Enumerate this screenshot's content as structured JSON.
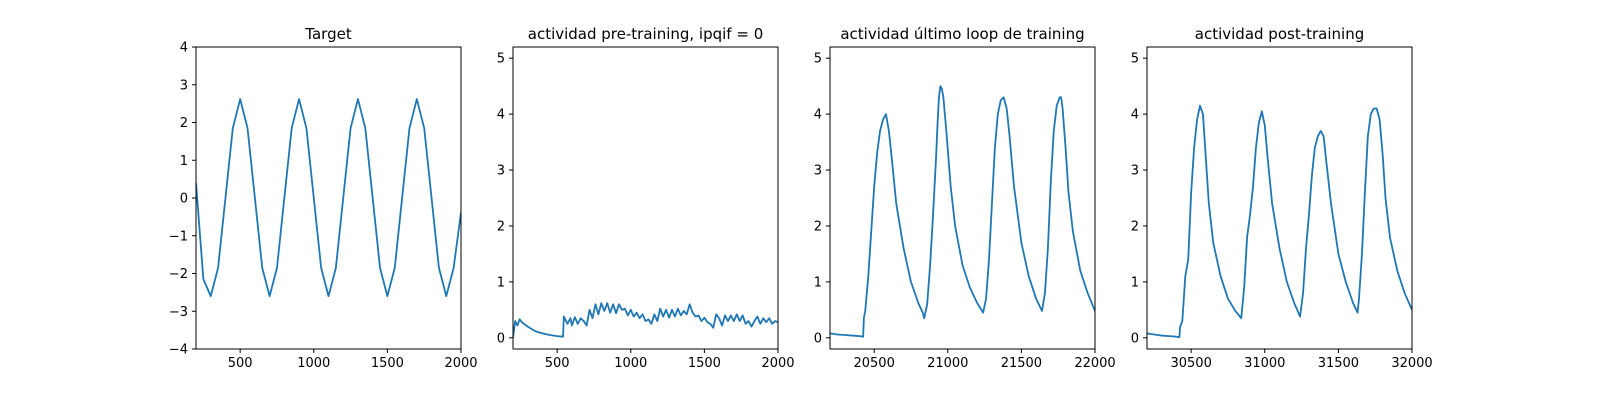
{
  "chart_data": [
    {
      "type": "line",
      "title": "Target",
      "xlabel": "",
      "ylabel": "",
      "xlim": [
        200,
        2000
      ],
      "ylim": [
        -4,
        4
      ],
      "xticks": [
        500,
        1000,
        1500,
        2000
      ],
      "xtick_labels": [
        "500",
        "1000",
        "1500",
        "2000"
      ],
      "yticks": [
        -4,
        -3,
        -2,
        -1,
        0,
        1,
        2,
        3,
        4
      ],
      "ytick_labels": [
        "−4",
        "−3",
        "−2",
        "−1",
        "0",
        "1",
        "2",
        "3",
        "4"
      ],
      "grid": false,
      "color": "#1f77b4",
      "series": [
        {
          "x": [
            200,
            250,
            300,
            350,
            400,
            450,
            500,
            550,
            600,
            650,
            700,
            750,
            800,
            850,
            900,
            950,
            1000,
            1050,
            1100,
            1150,
            1200,
            1250,
            1300,
            1350,
            1400,
            1450,
            1500,
            1550,
            1600,
            1650,
            1700,
            1750,
            1800,
            1850,
            1900,
            1950,
            2000
          ],
          "y": [
            0.4,
            -2.15,
            -2.6,
            -1.85,
            0.0,
            1.85,
            2.62,
            1.85,
            0.0,
            -1.85,
            -2.6,
            -1.85,
            0.0,
            1.85,
            2.62,
            1.85,
            0.0,
            -1.85,
            -2.6,
            -1.85,
            0.0,
            1.85,
            2.62,
            1.85,
            0.0,
            -1.85,
            -2.6,
            -1.85,
            0.0,
            1.85,
            2.62,
            1.85,
            0.0,
            -1.85,
            -2.6,
            -1.85,
            -0.38
          ]
        }
      ]
    },
    {
      "type": "line",
      "title": "actividad pre-training, ipqif = 0",
      "xlabel": "",
      "ylabel": "",
      "xlim": [
        200,
        2000
      ],
      "ylim": [
        -0.2,
        5.2
      ],
      "xticks": [
        500,
        1000,
        1500,
        2000
      ],
      "xtick_labels": [
        "500",
        "1000",
        "1500",
        "2000"
      ],
      "yticks": [
        0,
        1,
        2,
        3,
        4,
        5
      ],
      "ytick_labels": [
        "0",
        "1",
        "2",
        "3",
        "4",
        "5"
      ],
      "grid": false,
      "color": "#1f77b4",
      "series": [
        {
          "x": [
            200,
            215,
            230,
            245,
            260,
            300,
            350,
            400,
            450,
            500,
            540,
            545,
            570,
            590,
            600,
            620,
            640,
            660,
            680,
            700,
            720,
            740,
            760,
            780,
            800,
            820,
            840,
            860,
            880,
            900,
            920,
            940,
            960,
            980,
            1000,
            1020,
            1040,
            1060,
            1080,
            1100,
            1120,
            1140,
            1160,
            1180,
            1200,
            1220,
            1240,
            1260,
            1280,
            1300,
            1320,
            1340,
            1360,
            1380,
            1400,
            1420,
            1440,
            1460,
            1480,
            1500,
            1520,
            1540,
            1560,
            1580,
            1600,
            1620,
            1640,
            1660,
            1680,
            1700,
            1720,
            1740,
            1760,
            1780,
            1800,
            1820,
            1840,
            1860,
            1880,
            1900,
            1920,
            1940,
            1960,
            1980,
            2000
          ],
          "y": [
            0.0,
            0.3,
            0.22,
            0.33,
            0.28,
            0.2,
            0.12,
            0.08,
            0.05,
            0.03,
            0.02,
            0.38,
            0.25,
            0.35,
            0.22,
            0.37,
            0.25,
            0.35,
            0.3,
            0.22,
            0.5,
            0.35,
            0.6,
            0.42,
            0.62,
            0.48,
            0.62,
            0.45,
            0.6,
            0.44,
            0.6,
            0.5,
            0.52,
            0.4,
            0.5,
            0.38,
            0.45,
            0.35,
            0.42,
            0.3,
            0.33,
            0.25,
            0.42,
            0.3,
            0.52,
            0.38,
            0.5,
            0.36,
            0.5,
            0.38,
            0.52,
            0.4,
            0.48,
            0.42,
            0.6,
            0.45,
            0.38,
            0.4,
            0.3,
            0.36,
            0.28,
            0.25,
            0.18,
            0.42,
            0.35,
            0.22,
            0.4,
            0.3,
            0.4,
            0.3,
            0.42,
            0.3,
            0.4,
            0.25,
            0.3,
            0.2,
            0.3,
            0.38,
            0.25,
            0.35,
            0.28,
            0.35,
            0.25,
            0.3,
            0.28
          ]
        }
      ]
    },
    {
      "type": "line",
      "title": "actividad último loop de training",
      "xlabel": "",
      "ylabel": "",
      "xlim": [
        20200,
        22000
      ],
      "ylim": [
        -0.2,
        5.2
      ],
      "xticks": [
        20500,
        21000,
        21500,
        22000
      ],
      "xtick_labels": [
        "20500",
        "21000",
        "21500",
        "22000"
      ],
      "yticks": [
        0,
        1,
        2,
        3,
        4,
        5
      ],
      "ytick_labels": [
        "0",
        "1",
        "2",
        "3",
        "4",
        "5"
      ],
      "grid": false,
      "color": "#1f77b4",
      "series": [
        {
          "x": [
            20200,
            20250,
            20300,
            20350,
            20400,
            20425,
            20430,
            20440,
            20460,
            20480,
            20500,
            20520,
            20540,
            20560,
            20580,
            20600,
            20620,
            20650,
            20700,
            20750,
            20800,
            20830,
            20840,
            20860,
            20880,
            20900,
            20920,
            20930,
            20940,
            20950,
            20960,
            20970,
            20990,
            21020,
            21050,
            21100,
            21150,
            21200,
            21240,
            21260,
            21280,
            21300,
            21320,
            21340,
            21360,
            21380,
            21400,
            21420,
            21450,
            21500,
            21550,
            21600,
            21640,
            21660,
            21680,
            21700,
            21720,
            21740,
            21760,
            21770,
            21780,
            21800,
            21820,
            21850,
            21900,
            21950,
            22000
          ],
          "y": [
            0.08,
            0.06,
            0.05,
            0.04,
            0.03,
            0.02,
            0.35,
            0.5,
            1.1,
            1.9,
            2.7,
            3.3,
            3.7,
            3.9,
            4.0,
            3.7,
            3.2,
            2.4,
            1.6,
            1.0,
            0.62,
            0.45,
            0.35,
            0.6,
            1.3,
            2.2,
            3.2,
            3.8,
            4.3,
            4.5,
            4.45,
            4.3,
            3.7,
            2.7,
            2.0,
            1.3,
            0.9,
            0.62,
            0.45,
            0.7,
            1.4,
            2.4,
            3.4,
            4.0,
            4.25,
            4.3,
            4.1,
            3.6,
            2.7,
            1.7,
            1.1,
            0.7,
            0.48,
            0.8,
            1.6,
            2.8,
            3.7,
            4.15,
            4.3,
            4.3,
            4.1,
            3.4,
            2.6,
            1.9,
            1.2,
            0.8,
            0.48
          ]
        }
      ]
    },
    {
      "type": "line",
      "title": "actividad post-training",
      "xlabel": "",
      "ylabel": "",
      "xlim": [
        30200,
        32000
      ],
      "ylim": [
        -0.2,
        5.2
      ],
      "xticks": [
        30500,
        31000,
        31500,
        32000
      ],
      "xtick_labels": [
        "30500",
        "31000",
        "31500",
        "32000"
      ],
      "yticks": [
        0,
        1,
        2,
        3,
        4,
        5
      ],
      "ytick_labels": [
        "0",
        "1",
        "2",
        "3",
        "4",
        "5"
      ],
      "grid": false,
      "color": "#1f77b4",
      "series": [
        {
          "x": [
            30200,
            30250,
            30300,
            30350,
            30400,
            30420,
            30425,
            30440,
            30460,
            30480,
            30500,
            30520,
            30540,
            30560,
            30580,
            30600,
            30620,
            30650,
            30700,
            30750,
            30800,
            30840,
            30860,
            30880,
            30900,
            30920,
            30940,
            30960,
            30980,
            31000,
            31020,
            31050,
            31100,
            31150,
            31200,
            31240,
            31260,
            31280,
            31300,
            31320,
            31340,
            31360,
            31380,
            31400,
            31420,
            31450,
            31500,
            31550,
            31600,
            31630,
            31640,
            31660,
            31680,
            31700,
            31720,
            31740,
            31760,
            31780,
            31800,
            31820,
            31850,
            31900,
            31950,
            32000
          ],
          "y": [
            0.08,
            0.06,
            0.04,
            0.03,
            0.02,
            0.01,
            0.2,
            0.3,
            1.1,
            1.4,
            2.6,
            3.4,
            3.9,
            4.15,
            4.0,
            3.2,
            2.4,
            1.7,
            1.1,
            0.7,
            0.48,
            0.35,
            0.9,
            1.8,
            2.2,
            2.7,
            3.4,
            3.85,
            4.05,
            3.8,
            3.2,
            2.4,
            1.6,
            1.0,
            0.62,
            0.38,
            0.8,
            1.6,
            2.2,
            2.9,
            3.4,
            3.6,
            3.7,
            3.6,
            3.1,
            2.4,
            1.5,
            1.0,
            0.62,
            0.45,
            0.7,
            1.5,
            2.6,
            3.6,
            4.0,
            4.1,
            4.1,
            3.9,
            3.3,
            2.5,
            1.8,
            1.2,
            0.8,
            0.5
          ]
        }
      ]
    }
  ]
}
